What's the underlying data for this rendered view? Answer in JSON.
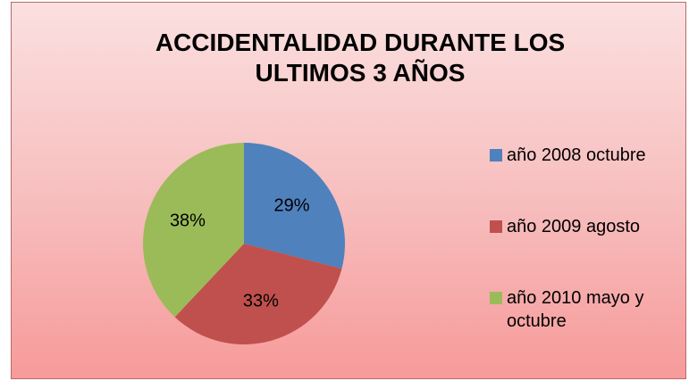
{
  "chart_data": {
    "type": "pie",
    "title": "ACCIDENTALIDAD DURANTE LOS ULTIMOS 3 AÑOS",
    "categories": [
      "año 2008 octubre",
      "año 2009 agosto",
      "año 2010 mayo y octubre"
    ],
    "values": [
      29,
      33,
      38
    ],
    "value_labels": [
      "29%",
      "33%",
      "38%"
    ],
    "colors": [
      "#4f81bd",
      "#c0504d",
      "#9bbb59"
    ],
    "legend": "right"
  }
}
